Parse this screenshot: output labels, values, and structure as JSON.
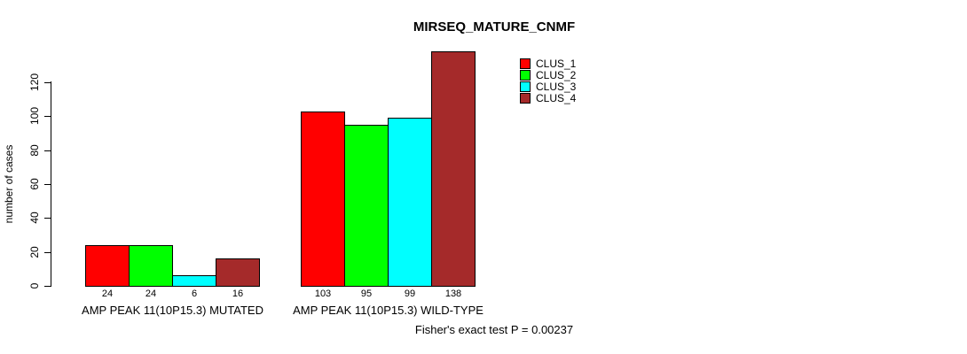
{
  "chart_data": {
    "type": "bar",
    "title": "MIRSEQ_MATURE_CNMF",
    "ylabel": "number of cases",
    "xlabel": "",
    "categories": [
      "AMP PEAK 11(10P15.3) MUTATED",
      "AMP PEAK 11(10P15.3) WILD-TYPE"
    ],
    "series": [
      {
        "name": "CLUS_1",
        "color": "#ff0000",
        "values": [
          24,
          103
        ]
      },
      {
        "name": "CLUS_2",
        "color": "#00ff00",
        "values": [
          24,
          95
        ]
      },
      {
        "name": "CLUS_3",
        "color": "#00ffff",
        "values": [
          6,
          99
        ]
      },
      {
        "name": "CLUS_4",
        "color": "#a52a2a",
        "values": [
          16,
          138
        ]
      }
    ],
    "bar_value_labels": [
      [
        "24",
        "24",
        "6",
        "16"
      ],
      [
        "103",
        "95",
        "99",
        "138"
      ]
    ],
    "yticks": [
      0,
      20,
      40,
      60,
      80,
      100,
      120
    ],
    "ylim": [
      0,
      138
    ],
    "grid": false,
    "legend_position": "top-right",
    "annotation": "Fisher's exact test P = 0.00237"
  }
}
